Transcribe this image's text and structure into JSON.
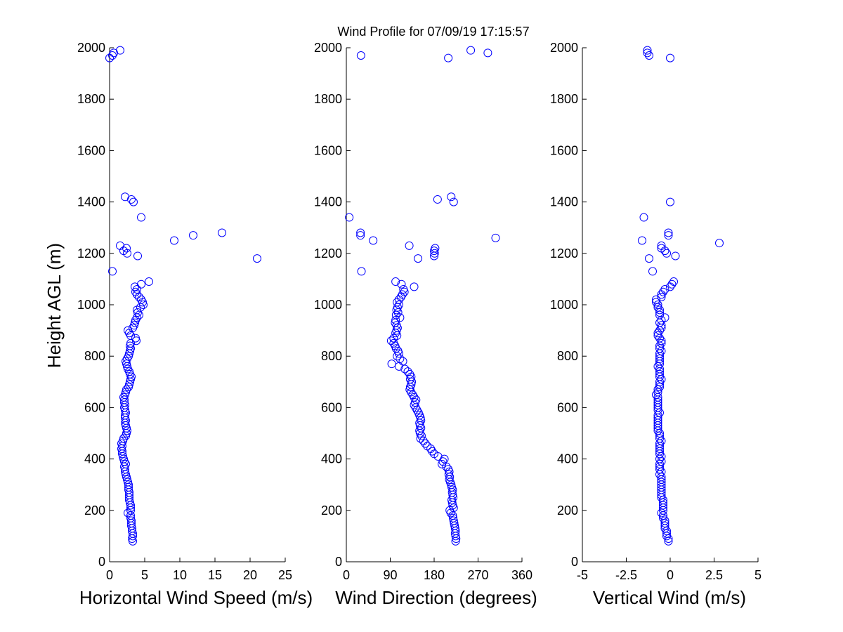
{
  "figure": {
    "title": "Wind Profile for  07/09/19 17:15:57",
    "ylabel": "Height AGL (m)"
  },
  "colors": {
    "marker": "#0000ff",
    "axis": "#000000",
    "background": "#ffffff"
  },
  "chart_data": [
    {
      "type": "scatter",
      "xlabel": "Horizontal Wind Speed (m/s)",
      "ylabel": "Height AGL (m)",
      "xlim": [
        0,
        25
      ],
      "ylim": [
        0,
        2000
      ],
      "xticks": [
        "0",
        "5",
        "10",
        "15",
        "20",
        "25"
      ],
      "yticks": [
        "0",
        "200",
        "400",
        "600",
        "800",
        "1000",
        "1200",
        "1400",
        "1600",
        "1800",
        "2000"
      ],
      "grid": false,
      "points": [
        [
          3.3,
          80
        ],
        [
          3.2,
          90
        ],
        [
          3.3,
          100
        ],
        [
          3.3,
          110
        ],
        [
          3.2,
          120
        ],
        [
          3.2,
          130
        ],
        [
          3.1,
          140
        ],
        [
          3.1,
          150
        ],
        [
          3.1,
          160
        ],
        [
          3.0,
          170
        ],
        [
          3.0,
          180
        ],
        [
          2.6,
          190
        ],
        [
          3.0,
          200
        ],
        [
          3.0,
          210
        ],
        [
          3.0,
          220
        ],
        [
          2.9,
          230
        ],
        [
          2.8,
          240
        ],
        [
          2.8,
          250
        ],
        [
          2.8,
          260
        ],
        [
          2.8,
          270
        ],
        [
          2.7,
          280
        ],
        [
          2.7,
          290
        ],
        [
          2.7,
          300
        ],
        [
          2.6,
          310
        ],
        [
          2.5,
          320
        ],
        [
          2.4,
          330
        ],
        [
          2.3,
          340
        ],
        [
          2.2,
          350
        ],
        [
          2.2,
          360
        ],
        [
          2.1,
          370
        ],
        [
          2.3,
          380
        ],
        [
          2.1,
          390
        ],
        [
          2.0,
          400
        ],
        [
          1.9,
          410
        ],
        [
          1.8,
          420
        ],
        [
          1.8,
          430
        ],
        [
          1.7,
          440
        ],
        [
          1.8,
          450
        ],
        [
          1.7,
          460
        ],
        [
          1.9,
          470
        ],
        [
          2.0,
          480
        ],
        [
          2.3,
          490
        ],
        [
          2.4,
          500
        ],
        [
          2.5,
          510
        ],
        [
          2.4,
          520
        ],
        [
          2.3,
          530
        ],
        [
          2.2,
          540
        ],
        [
          2.3,
          550
        ],
        [
          2.2,
          560
        ],
        [
          2.2,
          570
        ],
        [
          2.3,
          580
        ],
        [
          2.2,
          590
        ],
        [
          2.1,
          600
        ],
        [
          2.2,
          610
        ],
        [
          2.1,
          620
        ],
        [
          2.1,
          630
        ],
        [
          2.0,
          640
        ],
        [
          2.2,
          650
        ],
        [
          2.3,
          660
        ],
        [
          2.4,
          670
        ],
        [
          2.7,
          680
        ],
        [
          2.8,
          690
        ],
        [
          2.9,
          700
        ],
        [
          3.0,
          710
        ],
        [
          3.1,
          720
        ],
        [
          2.9,
          730
        ],
        [
          2.8,
          740
        ],
        [
          2.6,
          750
        ],
        [
          2.5,
          760
        ],
        [
          2.4,
          770
        ],
        [
          2.3,
          780
        ],
        [
          2.5,
          790
        ],
        [
          2.7,
          800
        ],
        [
          2.8,
          810
        ],
        [
          2.9,
          820
        ],
        [
          3.0,
          830
        ],
        [
          2.9,
          840
        ],
        [
          3.0,
          850
        ],
        [
          3.8,
          860
        ],
        [
          3.7,
          870
        ],
        [
          3.0,
          880
        ],
        [
          2.8,
          890
        ],
        [
          2.6,
          900
        ],
        [
          3.3,
          910
        ],
        [
          3.5,
          920
        ],
        [
          3.6,
          930
        ],
        [
          3.7,
          940
        ],
        [
          3.9,
          950
        ],
        [
          4.2,
          960
        ],
        [
          4.0,
          970
        ],
        [
          3.9,
          980
        ],
        [
          4.4,
          990
        ],
        [
          4.8,
          1000
        ],
        [
          4.7,
          1010
        ],
        [
          4.5,
          1020
        ],
        [
          4.2,
          1030
        ],
        [
          3.9,
          1040
        ],
        [
          3.7,
          1050
        ],
        [
          3.9,
          1060
        ],
        [
          3.6,
          1070
        ],
        [
          4.5,
          1080
        ],
        [
          5.6,
          1090
        ],
        [
          0.4,
          1130
        ],
        [
          21.0,
          1180
        ],
        [
          4.0,
          1190
        ],
        [
          2.5,
          1200
        ],
        [
          2.0,
          1210
        ],
        [
          2.4,
          1220
        ],
        [
          1.5,
          1230
        ],
        [
          9.2,
          1250
        ],
        [
          11.9,
          1270
        ],
        [
          16.0,
          1280
        ],
        [
          4.5,
          1340
        ],
        [
          3.4,
          1400
        ],
        [
          3.1,
          1410
        ],
        [
          2.2,
          1420
        ],
        [
          0.0,
          1960
        ],
        [
          0.4,
          1970
        ],
        [
          0.6,
          1980
        ],
        [
          1.5,
          1990
        ]
      ]
    },
    {
      "type": "scatter",
      "xlabel": "Wind Direction (degrees)",
      "xlim": [
        0,
        360
      ],
      "ylim": [
        0,
        2000
      ],
      "xticks": [
        "0",
        "90",
        "180",
        "270",
        "360"
      ],
      "yticks": [
        "0",
        "200",
        "400",
        "600",
        "800",
        "1000",
        "1200",
        "1400",
        "1600",
        "1800",
        "2000"
      ],
      "grid": false,
      "points": [
        [
          224,
          80
        ],
        [
          225,
          90
        ],
        [
          224,
          100
        ],
        [
          223,
          110
        ],
        [
          224,
          120
        ],
        [
          223,
          130
        ],
        [
          222,
          140
        ],
        [
          221,
          150
        ],
        [
          220,
          160
        ],
        [
          219,
          170
        ],
        [
          218,
          180
        ],
        [
          214,
          190
        ],
        [
          212,
          200
        ],
        [
          220,
          210
        ],
        [
          218,
          220
        ],
        [
          217,
          230
        ],
        [
          216,
          240
        ],
        [
          219,
          250
        ],
        [
          218,
          260
        ],
        [
          217,
          270
        ],
        [
          218,
          280
        ],
        [
          216,
          290
        ],
        [
          215,
          300
        ],
        [
          213,
          310
        ],
        [
          211,
          320
        ],
        [
          212,
          330
        ],
        [
          210,
          340
        ],
        [
          211,
          350
        ],
        [
          209,
          360
        ],
        [
          205,
          370
        ],
        [
          196,
          380
        ],
        [
          198,
          390
        ],
        [
          201,
          400
        ],
        [
          188,
          410
        ],
        [
          180,
          420
        ],
        [
          176,
          430
        ],
        [
          173,
          440
        ],
        [
          166,
          450
        ],
        [
          162,
          460
        ],
        [
          158,
          470
        ],
        [
          152,
          480
        ],
        [
          154,
          490
        ],
        [
          151,
          500
        ],
        [
          150,
          510
        ],
        [
          153,
          520
        ],
        [
          151,
          530
        ],
        [
          150,
          540
        ],
        [
          153,
          550
        ],
        [
          152,
          560
        ],
        [
          150,
          570
        ],
        [
          148,
          580
        ],
        [
          145,
          590
        ],
        [
          142,
          600
        ],
        [
          139,
          610
        ],
        [
          141,
          620
        ],
        [
          143,
          630
        ],
        [
          139,
          640
        ],
        [
          136,
          650
        ],
        [
          133,
          660
        ],
        [
          130,
          670
        ],
        [
          131,
          680
        ],
        [
          133,
          690
        ],
        [
          134,
          700
        ],
        [
          131,
          710
        ],
        [
          133,
          720
        ],
        [
          130,
          730
        ],
        [
          126,
          740
        ],
        [
          120,
          750
        ],
        [
          108,
          760
        ],
        [
          93,
          770
        ],
        [
          116,
          780
        ],
        [
          110,
          790
        ],
        [
          104,
          800
        ],
        [
          108,
          810
        ],
        [
          106,
          820
        ],
        [
          102,
          830
        ],
        [
          100,
          840
        ],
        [
          97,
          850
        ],
        [
          92,
          860
        ],
        [
          97,
          870
        ],
        [
          104,
          880
        ],
        [
          101,
          890
        ],
        [
          103,
          900
        ],
        [
          105,
          910
        ],
        [
          103,
          920
        ],
        [
          100,
          930
        ],
        [
          101,
          940
        ],
        [
          110,
          950
        ],
        [
          102,
          960
        ],
        [
          106,
          970
        ],
        [
          103,
          980
        ],
        [
          105,
          990
        ],
        [
          108,
          1000
        ],
        [
          104,
          1010
        ],
        [
          108,
          1020
        ],
        [
          112,
          1030
        ],
        [
          115,
          1040
        ],
        [
          119,
          1050
        ],
        [
          117,
          1060
        ],
        [
          139,
          1070
        ],
        [
          113,
          1080
        ],
        [
          101,
          1090
        ],
        [
          31,
          1130
        ],
        [
          147,
          1180
        ],
        [
          180,
          1190
        ],
        [
          181,
          1200
        ],
        [
          180,
          1210
        ],
        [
          182,
          1220
        ],
        [
          129,
          1230
        ],
        [
          55,
          1250
        ],
        [
          306,
          1260
        ],
        [
          29,
          1270
        ],
        [
          29,
          1280
        ],
        [
          6,
          1340
        ],
        [
          220,
          1400
        ],
        [
          187,
          1410
        ],
        [
          215,
          1420
        ],
        [
          209,
          1960
        ],
        [
          30,
          1970
        ],
        [
          290,
          1980
        ],
        [
          255,
          1990
        ]
      ]
    },
    {
      "type": "scatter",
      "xlabel": "Vertical Wind (m/s)",
      "xlim": [
        -5,
        5
      ],
      "ylim": [
        0,
        2000
      ],
      "xticks": [
        "-5",
        "-2.5",
        "0",
        "2.5",
        "5"
      ],
      "yticks": [
        "0",
        "200",
        "400",
        "600",
        "800",
        "1000",
        "1200",
        "1400",
        "1600",
        "1800",
        "2000"
      ],
      "grid": false,
      "points": [
        [
          -0.1,
          80
        ],
        [
          -0.1,
          90
        ],
        [
          -0.2,
          100
        ],
        [
          -0.2,
          110
        ],
        [
          -0.2,
          120
        ],
        [
          -0.3,
          130
        ],
        [
          -0.3,
          140
        ],
        [
          -0.3,
          150
        ],
        [
          -0.3,
          160
        ],
        [
          -0.4,
          170
        ],
        [
          -0.4,
          180
        ],
        [
          -0.5,
          190
        ],
        [
          -0.4,
          200
        ],
        [
          -0.4,
          210
        ],
        [
          -0.4,
          220
        ],
        [
          -0.4,
          230
        ],
        [
          -0.4,
          240
        ],
        [
          -0.5,
          250
        ],
        [
          -0.5,
          260
        ],
        [
          -0.5,
          270
        ],
        [
          -0.5,
          280
        ],
        [
          -0.5,
          290
        ],
        [
          -0.5,
          300
        ],
        [
          -0.5,
          310
        ],
        [
          -0.5,
          320
        ],
        [
          -0.5,
          330
        ],
        [
          -0.6,
          340
        ],
        [
          -0.5,
          350
        ],
        [
          -0.6,
          360
        ],
        [
          -0.6,
          370
        ],
        [
          -0.6,
          380
        ],
        [
          -0.5,
          390
        ],
        [
          -0.6,
          400
        ],
        [
          -0.5,
          410
        ],
        [
          -0.6,
          420
        ],
        [
          -0.6,
          430
        ],
        [
          -0.6,
          440
        ],
        [
          -0.6,
          450
        ],
        [
          -0.6,
          460
        ],
        [
          -0.5,
          470
        ],
        [
          -0.6,
          480
        ],
        [
          -0.6,
          490
        ],
        [
          -0.6,
          500
        ],
        [
          -0.7,
          510
        ],
        [
          -0.7,
          520
        ],
        [
          -0.7,
          530
        ],
        [
          -0.7,
          540
        ],
        [
          -0.7,
          550
        ],
        [
          -0.7,
          560
        ],
        [
          -0.7,
          570
        ],
        [
          -0.6,
          580
        ],
        [
          -0.7,
          590
        ],
        [
          -0.7,
          600
        ],
        [
          -0.7,
          610
        ],
        [
          -0.7,
          620
        ],
        [
          -0.7,
          630
        ],
        [
          -0.7,
          640
        ],
        [
          -0.8,
          650
        ],
        [
          -0.7,
          660
        ],
        [
          -0.7,
          670
        ],
        [
          -0.6,
          680
        ],
        [
          -0.6,
          690
        ],
        [
          -0.6,
          700
        ],
        [
          -0.5,
          710
        ],
        [
          -0.6,
          720
        ],
        [
          -0.6,
          730
        ],
        [
          -0.6,
          740
        ],
        [
          -0.6,
          750
        ],
        [
          -0.7,
          760
        ],
        [
          -0.6,
          770
        ],
        [
          -0.6,
          780
        ],
        [
          -0.6,
          790
        ],
        [
          -0.6,
          800
        ],
        [
          -0.6,
          810
        ],
        [
          -0.5,
          820
        ],
        [
          -0.6,
          830
        ],
        [
          -0.6,
          840
        ],
        [
          -0.5,
          850
        ],
        [
          -0.5,
          860
        ],
        [
          -0.6,
          870
        ],
        [
          -0.7,
          880
        ],
        [
          -0.7,
          890
        ],
        [
          -0.6,
          900
        ],
        [
          -0.5,
          910
        ],
        [
          -0.5,
          920
        ],
        [
          -0.6,
          930
        ],
        [
          -0.5,
          940
        ],
        [
          -0.3,
          950
        ],
        [
          -0.6,
          960
        ],
        [
          -0.6,
          970
        ],
        [
          -0.6,
          980
        ],
        [
          -0.7,
          990
        ],
        [
          -0.7,
          1000
        ],
        [
          -0.8,
          1010
        ],
        [
          -0.8,
          1020
        ],
        [
          -0.5,
          1030
        ],
        [
          -0.5,
          1040
        ],
        [
          -0.4,
          1050
        ],
        [
          -0.3,
          1060
        ],
        [
          0.0,
          1070
        ],
        [
          0.1,
          1080
        ],
        [
          0.2,
          1090
        ],
        [
          -1.0,
          1130
        ],
        [
          -1.2,
          1180
        ],
        [
          0.3,
          1190
        ],
        [
          -0.2,
          1200
        ],
        [
          -0.3,
          1210
        ],
        [
          -0.5,
          1220
        ],
        [
          -0.5,
          1230
        ],
        [
          2.8,
          1240
        ],
        [
          -1.6,
          1250
        ],
        [
          -0.1,
          1270
        ],
        [
          -0.1,
          1280
        ],
        [
          -1.5,
          1340
        ],
        [
          0.0,
          1400
        ],
        [
          0.0,
          1960
        ],
        [
          -1.2,
          1970
        ],
        [
          -1.3,
          1980
        ],
        [
          -1.3,
          1990
        ]
      ]
    }
  ]
}
